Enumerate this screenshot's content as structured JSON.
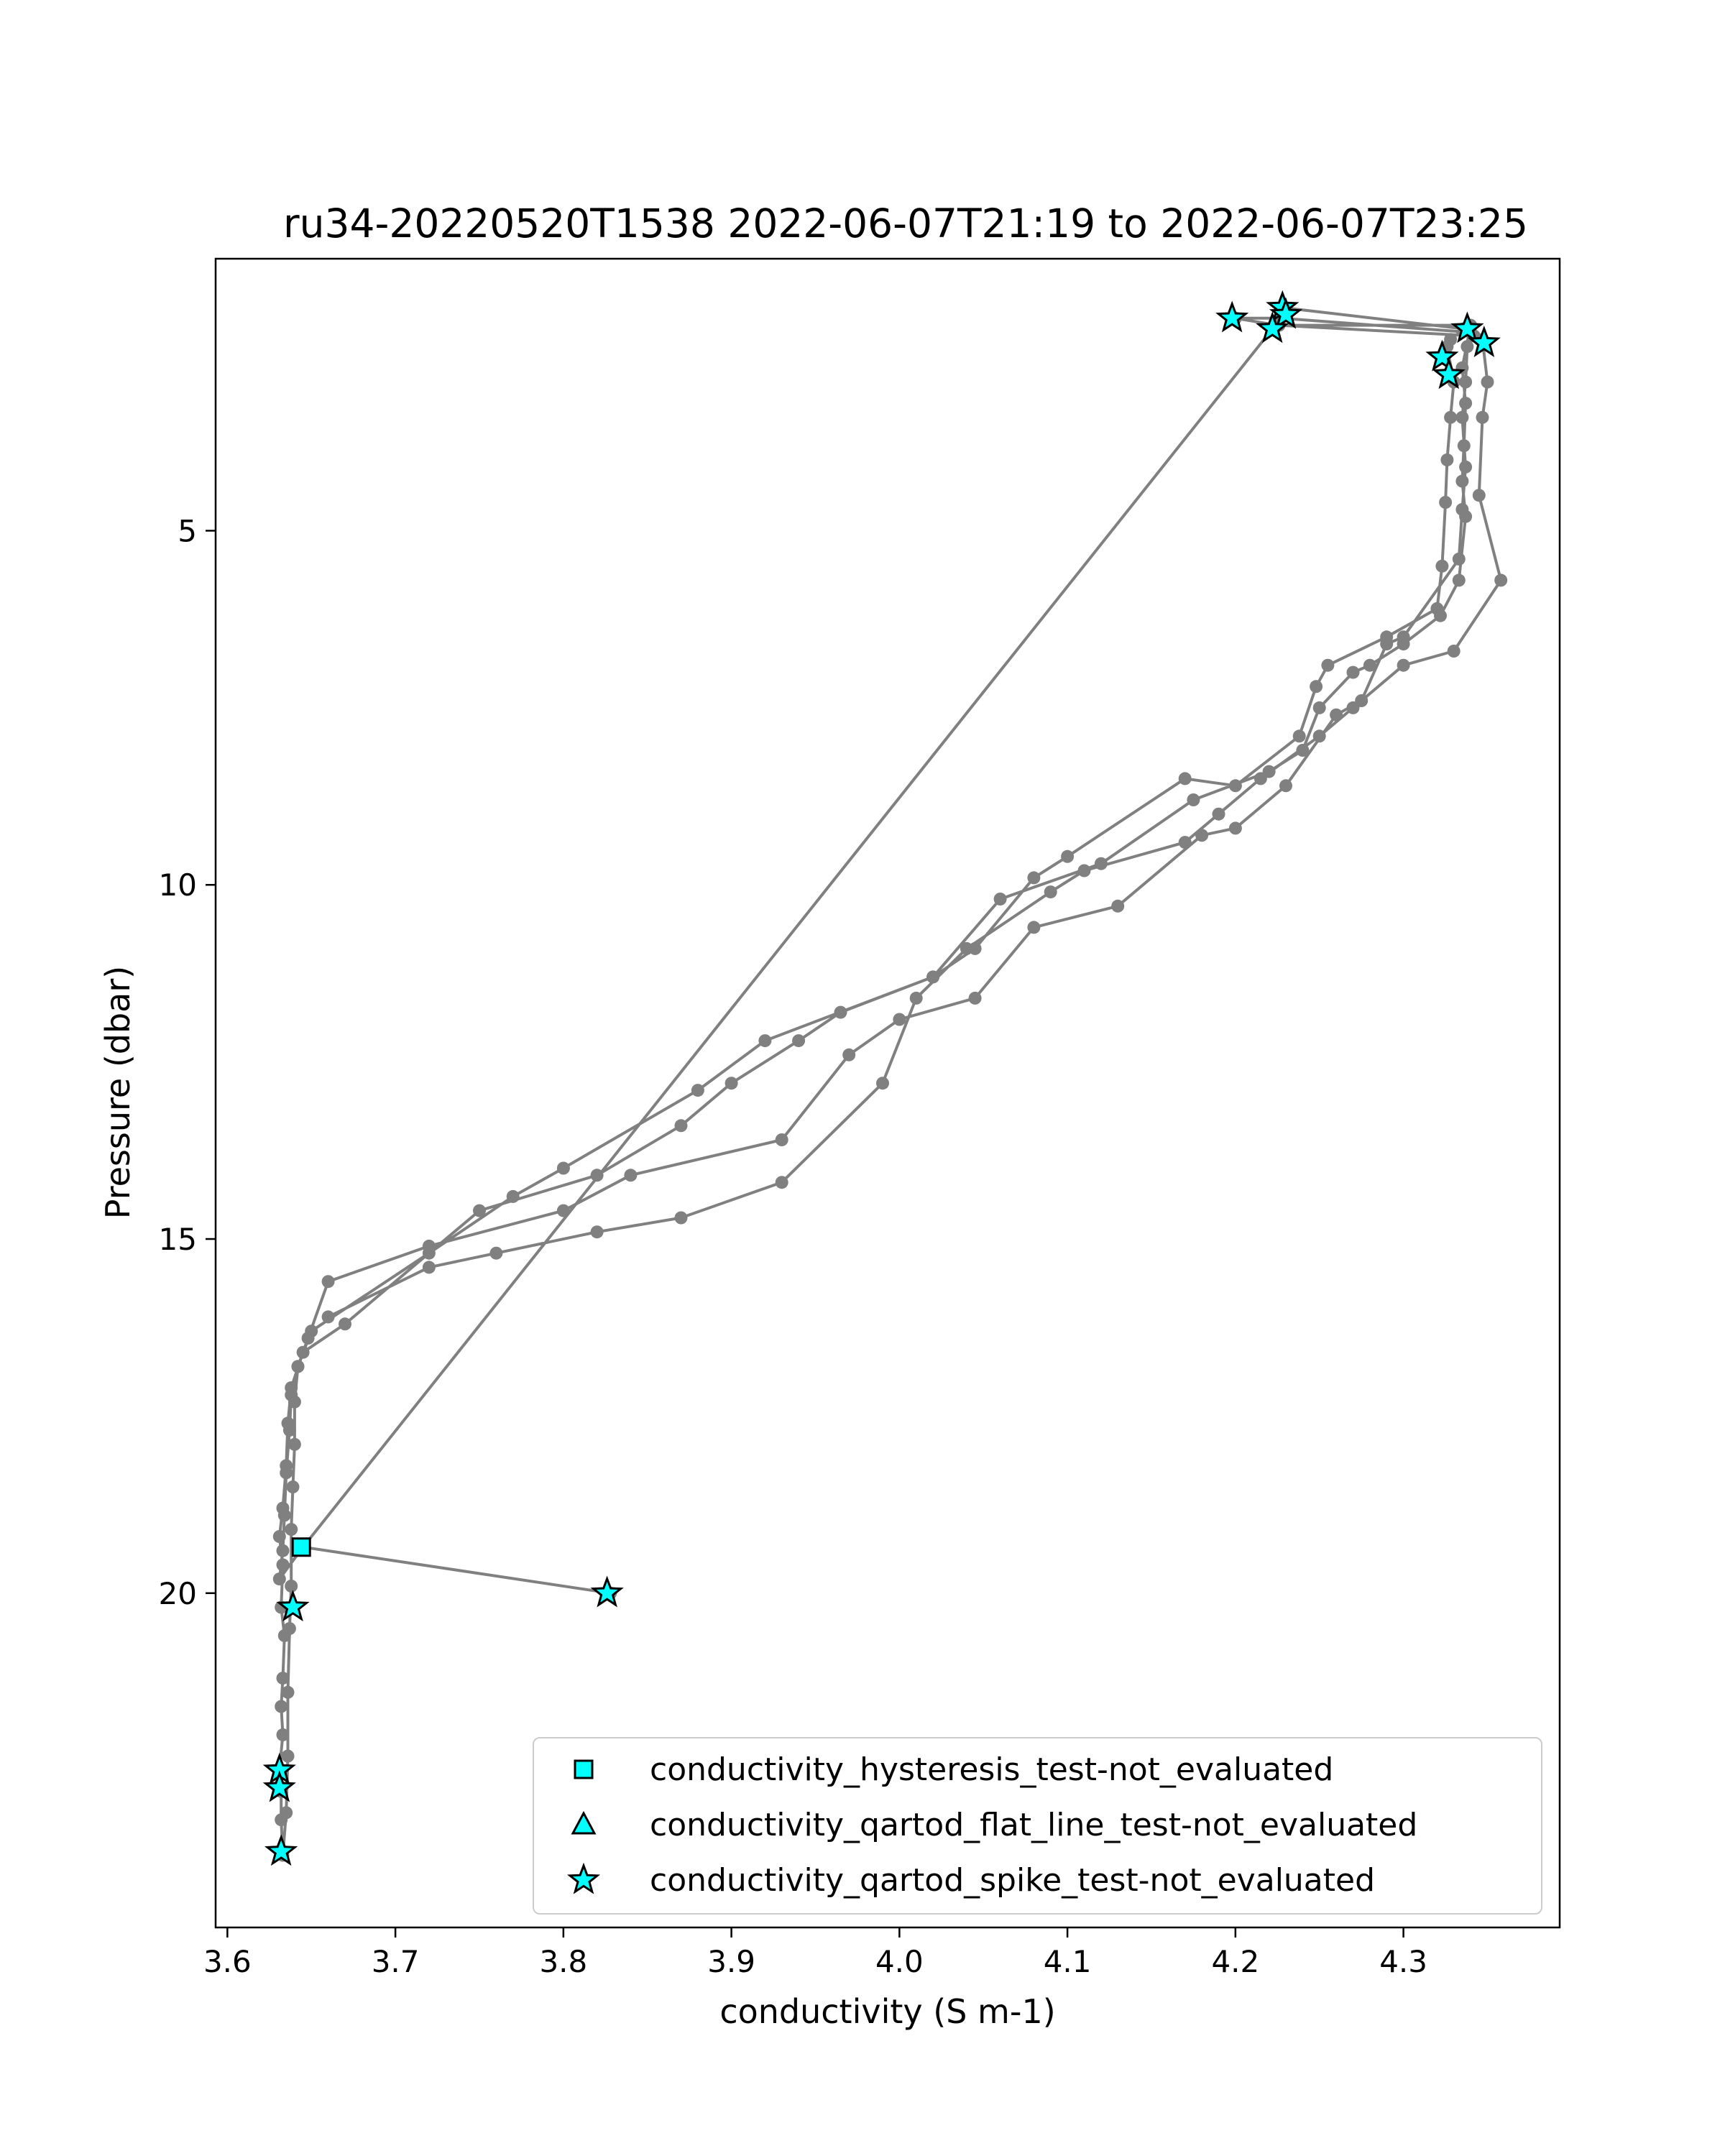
{
  "chart_data": {
    "type": "line",
    "title": "ru34-20220520T1538 2022-06-07T21:19 to 2022-06-07T23:25",
    "xlabel": "conductivity (S m-1)",
    "ylabel": "Pressure (dbar)",
    "xlim": [
      3.593,
      4.393
    ],
    "ylim": [
      24.72,
      1.16
    ],
    "y_inverted": true,
    "xticks": [
      3.6,
      3.7,
      3.8,
      3.9,
      4.0,
      4.1,
      4.2,
      4.3
    ],
    "xtick_labels": [
      "3.6",
      "3.7",
      "3.8",
      "3.9",
      "4.0",
      "4.1",
      "4.2",
      "4.3"
    ],
    "yticks": [
      5,
      10,
      15,
      20
    ],
    "ytick_labels": [
      "5",
      "10",
      "15",
      "20"
    ],
    "grid": false,
    "line_color": "#808080",
    "marker_color": "#00ffff",
    "marker_edge_color": "#000000",
    "profile": [
      [
        4.225,
        2.05
      ],
      [
        4.228,
        1.85
      ],
      [
        4.336,
        2.15
      ],
      [
        4.328,
        2.3
      ],
      [
        4.326,
        2.4
      ],
      [
        4.33,
        2.9
      ],
      [
        4.328,
        3.4
      ],
      [
        4.326,
        4.0
      ],
      [
        4.325,
        4.6
      ],
      [
        4.323,
        5.5
      ],
      [
        4.32,
        6.1
      ],
      [
        4.29,
        6.5
      ],
      [
        4.255,
        6.9
      ],
      [
        4.248,
        7.2
      ],
      [
        4.238,
        7.9
      ],
      [
        4.2,
        8.6
      ],
      [
        4.17,
        8.5
      ],
      [
        4.1,
        9.6
      ],
      [
        4.08,
        9.9
      ],
      [
        4.045,
        10.9
      ],
      [
        4.02,
        11.3
      ],
      [
        3.965,
        11.8
      ],
      [
        3.94,
        12.2
      ],
      [
        3.9,
        12.8
      ],
      [
        3.87,
        13.4
      ],
      [
        3.82,
        14.1
      ],
      [
        3.75,
        14.6
      ],
      [
        3.67,
        16.2
      ],
      [
        3.645,
        16.6
      ],
      [
        3.638,
        17.1
      ],
      [
        3.636,
        17.6
      ],
      [
        3.635,
        18.2
      ],
      [
        3.633,
        18.8
      ],
      [
        3.631,
        19.2
      ],
      [
        3.633,
        19.6
      ],
      [
        3.632,
        20.2
      ],
      [
        3.634,
        20.6
      ],
      [
        3.633,
        21.2
      ],
      [
        3.632,
        21.6
      ],
      [
        3.633,
        22.0
      ],
      [
        3.631,
        22.5
      ],
      [
        3.632,
        22.8
      ],
      [
        3.632,
        23.2
      ],
      [
        3.633,
        23.7
      ],
      [
        3.635,
        23.1
      ],
      [
        3.636,
        22.3
      ],
      [
        3.636,
        21.4
      ],
      [
        3.637,
        20.5
      ],
      [
        3.638,
        19.9
      ],
      [
        3.638,
        19.1
      ],
      [
        3.639,
        18.5
      ],
      [
        3.64,
        17.9
      ],
      [
        3.64,
        17.3
      ],
      [
        3.642,
        16.8
      ],
      [
        3.648,
        16.4
      ],
      [
        3.66,
        15.6
      ],
      [
        3.72,
        15.1
      ],
      [
        3.8,
        14.6
      ],
      [
        3.84,
        14.1
      ],
      [
        3.93,
        13.6
      ],
      [
        3.97,
        12.4
      ],
      [
        4.0,
        11.9
      ],
      [
        4.045,
        11.6
      ],
      [
        4.08,
        10.6
      ],
      [
        4.13,
        10.3
      ],
      [
        4.18,
        9.3
      ],
      [
        4.2,
        9.2
      ],
      [
        4.23,
        8.6
      ],
      [
        4.26,
        7.6
      ],
      [
        4.275,
        7.4
      ],
      [
        4.29,
        6.6
      ],
      [
        4.3,
        6.5
      ],
      [
        4.333,
        5.4
      ],
      [
        4.335,
        4.7
      ],
      [
        4.337,
        4.1
      ],
      [
        4.335,
        3.4
      ],
      [
        4.337,
        2.9
      ],
      [
        4.338,
        2.4
      ],
      [
        4.34,
        2.2
      ],
      [
        4.227,
        2.0
      ],
      [
        4.2,
        2.0
      ],
      [
        4.225,
        2.1
      ],
      [
        4.34,
        2.1
      ],
      [
        4.335,
        2.7
      ],
      [
        4.337,
        3.2
      ],
      [
        4.336,
        3.8
      ],
      [
        4.335,
        4.3
      ],
      [
        4.337,
        4.8
      ],
      [
        4.333,
        5.7
      ],
      [
        4.322,
        6.2
      ],
      [
        4.3,
        6.6
      ],
      [
        4.28,
        6.9
      ],
      [
        4.27,
        7.0
      ],
      [
        4.25,
        7.5
      ],
      [
        4.24,
        8.1
      ],
      [
        4.22,
        8.4
      ],
      [
        4.175,
        8.8
      ],
      [
        4.12,
        9.7
      ],
      [
        4.06,
        10.2
      ],
      [
        4.02,
        11.3
      ],
      [
        3.92,
        12.2
      ],
      [
        3.88,
        12.9
      ],
      [
        3.8,
        14.0
      ],
      [
        3.77,
        14.4
      ],
      [
        3.72,
        15.2
      ],
      [
        3.65,
        16.3
      ],
      [
        3.642,
        16.8
      ],
      [
        3.638,
        17.2
      ],
      [
        3.637,
        17.7
      ],
      [
        3.635,
        18.3
      ],
      [
        3.634,
        18.9
      ],
      [
        3.633,
        19.4
      ],
      [
        3.631,
        19.8
      ],
      [
        3.645,
        19.35
      ],
      [
        3.828,
        20.0
      ],
      [
        3.645,
        19.35
      ],
      [
        4.222,
        2.15
      ],
      [
        4.226,
        2.1
      ],
      [
        4.342,
        2.25
      ],
      [
        4.347,
        2.3
      ],
      [
        4.35,
        2.9
      ],
      [
        4.347,
        3.4
      ],
      [
        4.345,
        4.5
      ],
      [
        4.358,
        5.7
      ],
      [
        4.33,
        6.7
      ],
      [
        4.3,
        6.9
      ],
      [
        4.27,
        7.5
      ],
      [
        4.25,
        7.9
      ],
      [
        4.215,
        8.5
      ],
      [
        4.19,
        9.0
      ],
      [
        4.17,
        9.4
      ],
      [
        4.11,
        9.8
      ],
      [
        4.09,
        10.1
      ],
      [
        4.04,
        10.9
      ],
      [
        4.01,
        11.6
      ],
      [
        3.99,
        12.8
      ],
      [
        3.93,
        14.2
      ],
      [
        3.87,
        14.7
      ],
      [
        3.82,
        14.9
      ],
      [
        3.76,
        15.2
      ],
      [
        3.72,
        15.4
      ],
      [
        3.66,
        16.1
      ]
    ],
    "points": [
      {
        "x": 4.228,
        "y": 1.85,
        "marker": "star"
      },
      {
        "x": 4.23,
        "y": 1.95,
        "marker": "star"
      },
      {
        "x": 4.198,
        "y": 2.0,
        "marker": "star"
      },
      {
        "x": 4.222,
        "y": 2.15,
        "marker": "star"
      },
      {
        "x": 4.338,
        "y": 2.15,
        "marker": "star"
      },
      {
        "x": 4.348,
        "y": 2.35,
        "marker": "star"
      },
      {
        "x": 4.323,
        "y": 2.55,
        "marker": "star"
      },
      {
        "x": 4.327,
        "y": 2.8,
        "marker": "star"
      },
      {
        "x": 3.644,
        "y": 19.35,
        "marker": "square"
      },
      {
        "x": 3.826,
        "y": 20.0,
        "marker": "star"
      },
      {
        "x": 3.639,
        "y": 20.2,
        "marker": "star"
      },
      {
        "x": 3.631,
        "y": 22.5,
        "marker": "star"
      },
      {
        "x": 3.631,
        "y": 22.75,
        "marker": "star"
      },
      {
        "x": 3.632,
        "y": 23.65,
        "marker": "star"
      }
    ],
    "legend": {
      "placement": "lower right",
      "entries": [
        {
          "marker": "square",
          "label": "conductivity_hysteresis_test-not_evaluated"
        },
        {
          "marker": "triangle",
          "label": "conductivity_qartod_flat_line_test-not_evaluated"
        },
        {
          "marker": "star",
          "label": "conductivity_qartod_spike_test-not_evaluated"
        }
      ]
    }
  }
}
